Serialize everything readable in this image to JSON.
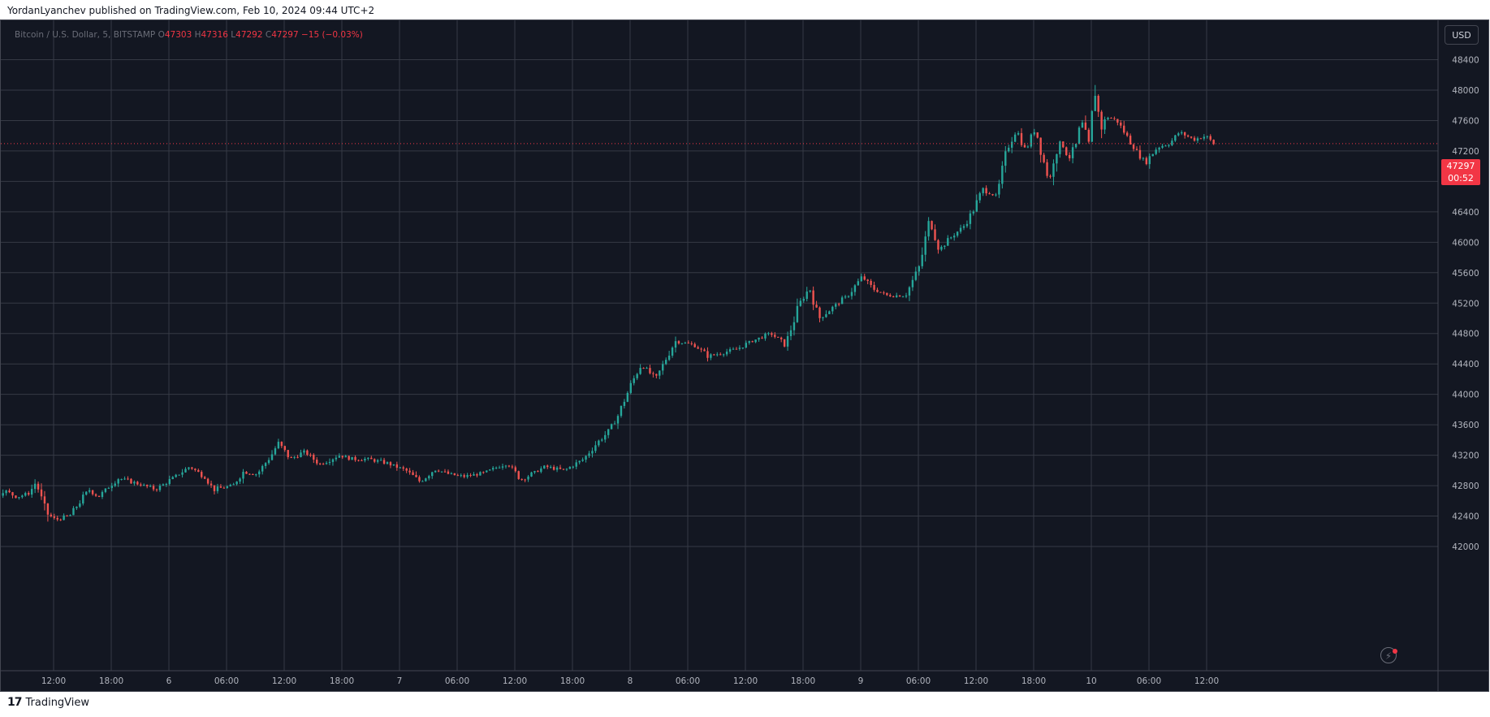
{
  "publisher_line": "YordanLyanchev published on TradingView.com, Feb 10, 2024 09:44 UTC+2",
  "legend": {
    "symbol": "Bitcoin / U.S. Dollar, 5, BITSTAMP",
    "open_label": "O",
    "open": "47303",
    "high_label": "H",
    "high": "47316",
    "low_label": "L",
    "low": "47292",
    "close_label": "C",
    "close": "47297",
    "change": "−15 (−0.03%)"
  },
  "currency_button": "USD",
  "last_price_tag": {
    "price": "47297",
    "countdown": "00:52"
  },
  "footer_brand": "TradingView",
  "bolt_icon": "lightning-icon",
  "colors": {
    "background": "#131722",
    "grid": "#363a45",
    "up": "#26a69a",
    "down": "#ef5350",
    "last_price": "#f23645",
    "axis_text": "#b2b5be"
  },
  "chart_data": {
    "type": "candlestick",
    "symbol": "BTCUSD",
    "timeframe": "5",
    "ylim": [
      41800,
      48600
    ],
    "y_ticks": [
      42000,
      42400,
      42800,
      43200,
      43600,
      44000,
      44400,
      44800,
      45200,
      45600,
      46000,
      46400,
      46800,
      47200,
      47600,
      48000,
      48400
    ],
    "x_range_hours_from_feb5_00": [
      -9,
      137
    ],
    "x_ticks": [
      {
        "h": 12,
        "label": "12:00"
      },
      {
        "h": 18,
        "label": "18:00"
      },
      {
        "h": 24,
        "label": "6"
      },
      {
        "h": 30,
        "label": "06:00"
      },
      {
        "h": 36,
        "label": "12:00"
      },
      {
        "h": 42,
        "label": "18:00"
      },
      {
        "h": 48,
        "label": "7"
      },
      {
        "h": 54,
        "label": "06:00"
      },
      {
        "h": 60,
        "label": "12:00"
      },
      {
        "h": 66,
        "label": "18:00"
      },
      {
        "h": 72,
        "label": "8"
      },
      {
        "h": 78,
        "label": "06:00"
      },
      {
        "h": 84,
        "label": "12:00"
      },
      {
        "h": 90,
        "label": "18:00"
      },
      {
        "h": 96,
        "label": "9"
      },
      {
        "h": 102,
        "label": "06:00"
      },
      {
        "h": 108,
        "label": "12:00"
      },
      {
        "h": 114,
        "label": "18:00"
      },
      {
        "h": 120,
        "label": "10"
      },
      {
        "h": 126,
        "label": "06:00"
      },
      {
        "h": 132,
        "label": "12:00"
      }
    ],
    "price_path": [
      [
        -8.6,
        42670
      ],
      [
        -6.5,
        42850
      ],
      [
        -5.5,
        43090
      ],
      [
        -4.5,
        43000
      ],
      [
        -3.5,
        42990
      ],
      [
        -2.5,
        43150
      ],
      [
        -0.5,
        43100
      ],
      [
        1.0,
        43120
      ],
      [
        2.5,
        43330
      ],
      [
        3.0,
        43500
      ],
      [
        4.0,
        43200
      ],
      [
        5.0,
        42800
      ],
      [
        6.0,
        42550
      ],
      [
        7.0,
        42750
      ],
      [
        8.5,
        42650
      ],
      [
        9.8,
        42700
      ],
      [
        10.5,
        42850
      ],
      [
        11.5,
        42450
      ],
      [
        12.5,
        42350
      ],
      [
        14.0,
        42400
      ],
      [
        16.0,
        42750
      ],
      [
        17.0,
        42650
      ],
      [
        19.0,
        42900
      ],
      [
        20.5,
        42850
      ],
      [
        23.0,
        42750
      ],
      [
        25.0,
        42920
      ],
      [
        26.5,
        43050
      ],
      [
        28.0,
        42920
      ],
      [
        29.0,
        42750
      ],
      [
        31.0,
        42800
      ],
      [
        32.0,
        42980
      ],
      [
        33.5,
        42950
      ],
      [
        35.0,
        43200
      ],
      [
        35.7,
        43360
      ],
      [
        37.0,
        43150
      ],
      [
        38.5,
        43250
      ],
      [
        40.0,
        43080
      ],
      [
        42.0,
        43200
      ],
      [
        43.5,
        43150
      ],
      [
        45.0,
        43150
      ],
      [
        47.0,
        43100
      ],
      [
        49.0,
        43000
      ],
      [
        50.5,
        42850
      ],
      [
        52.0,
        43020
      ],
      [
        53.5,
        42950
      ],
      [
        55.0,
        42920
      ],
      [
        57.0,
        42960
      ],
      [
        59.5,
        43100
      ],
      [
        61.0,
        42880
      ],
      [
        63.5,
        43050
      ],
      [
        65.5,
        43000
      ],
      [
        67.5,
        43150
      ],
      [
        68.8,
        43350
      ],
      [
        70.0,
        43500
      ],
      [
        71.0,
        43700
      ],
      [
        72.5,
        44150
      ],
      [
        73.5,
        44400
      ],
      [
        75.0,
        44200
      ],
      [
        77.0,
        44700
      ],
      [
        79.0,
        44650
      ],
      [
        80.5,
        44500
      ],
      [
        82.0,
        44550
      ],
      [
        83.5,
        44600
      ],
      [
        85.0,
        44700
      ],
      [
        87.0,
        44800
      ],
      [
        88.5,
        44650
      ],
      [
        90.0,
        45200
      ],
      [
        91.0,
        45400
      ],
      [
        92.0,
        45000
      ],
      [
        93.5,
        45150
      ],
      [
        95.0,
        45300
      ],
      [
        96.5,
        45550
      ],
      [
        97.5,
        45400
      ],
      [
        99.0,
        45300
      ],
      [
        101.0,
        45300
      ],
      [
        102.5,
        45700
      ],
      [
        103.5,
        46300
      ],
      [
        104.5,
        45900
      ],
      [
        106.0,
        46100
      ],
      [
        107.0,
        46200
      ],
      [
        108.0,
        46400
      ],
      [
        109.0,
        46700
      ],
      [
        110.5,
        46600
      ],
      [
        111.5,
        47200
      ],
      [
        112.5,
        47500
      ],
      [
        113.5,
        47200
      ],
      [
        114.5,
        47500
      ],
      [
        115.5,
        47000
      ],
      [
        116.0,
        46800
      ],
      [
        116.5,
        47200
      ],
      [
        117.3,
        47300
      ],
      [
        118.0,
        47100
      ],
      [
        118.8,
        47300
      ],
      [
        119.3,
        47600
      ],
      [
        120.2,
        47200
      ],
      [
        120.6,
        48100
      ],
      [
        121.3,
        47500
      ],
      [
        122.0,
        47650
      ],
      [
        123.0,
        47600
      ],
      [
        124.0,
        47400
      ],
      [
        125.0,
        47200
      ],
      [
        126.0,
        47050
      ],
      [
        127.2,
        47250
      ],
      [
        128.5,
        47300
      ],
      [
        129.5,
        47450
      ],
      [
        131.0,
        47350
      ],
      [
        132.3,
        47400
      ],
      [
        133.0,
        47297
      ]
    ]
  }
}
